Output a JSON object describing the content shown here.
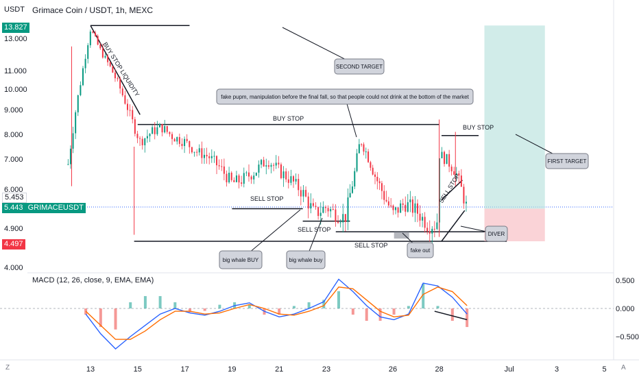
{
  "header": {
    "currency": "USDT",
    "title": "Grimace Coin / USDT, 1h, MEXC"
  },
  "macd_label": "MACD (12, 26, close, 9, EMA, EMA)",
  "price_tags": {
    "high": {
      "text": "13.827",
      "color": "#089981"
    },
    "close": {
      "text": "5.453",
      "color": "#ffffff"
    },
    "symbol": {
      "text": "5.443",
      "label": "GRIMACEUSDT",
      "color": "#089981"
    },
    "low": {
      "text": "4.497",
      "color": "#f23645"
    }
  },
  "corner_left": "Z",
  "corner_right": "A",
  "chart_data": [
    {
      "type": "candlestick",
      "title": "Grimace Coin / USDT, 1h, MEXC",
      "y_ticks": [
        13.0,
        11.0,
        10.0,
        9.0,
        8.0,
        7.0,
        6.0,
        4.9,
        4.0
      ],
      "y_tick_labels": [
        "13.000",
        "11.000",
        "10.000",
        "9.000",
        "8.000",
        "7.000",
        "6.000",
        "4.900",
        "4.000"
      ],
      "x_ticks": [
        "13",
        "15",
        "17",
        "19",
        "21",
        "23",
        "26",
        "28",
        "Jul",
        "3",
        "5"
      ],
      "ylim": [
        3.95,
        14.3
      ],
      "series_close": [
        {
          "x": 12.0,
          "y": 6.5
        },
        {
          "x": 12.6,
          "y": 10.5
        },
        {
          "x": 13.0,
          "y": 13.6
        },
        {
          "x": 13.4,
          "y": 12.3
        },
        {
          "x": 13.8,
          "y": 11.3
        },
        {
          "x": 14.2,
          "y": 10.2
        },
        {
          "x": 14.7,
          "y": 8.7
        },
        {
          "x": 15.1,
          "y": 7.7
        },
        {
          "x": 15.6,
          "y": 8.1
        },
        {
          "x": 16.0,
          "y": 8.3
        },
        {
          "x": 16.5,
          "y": 7.9
        },
        {
          "x": 17.0,
          "y": 7.7
        },
        {
          "x": 17.5,
          "y": 7.3
        },
        {
          "x": 18.0,
          "y": 7.1
        },
        {
          "x": 18.5,
          "y": 6.7
        },
        {
          "x": 19.0,
          "y": 6.2
        },
        {
          "x": 19.4,
          "y": 6.3
        },
        {
          "x": 20.0,
          "y": 6.6
        },
        {
          "x": 20.5,
          "y": 7.0
        },
        {
          "x": 21.0,
          "y": 6.6
        },
        {
          "x": 21.5,
          "y": 6.3
        },
        {
          "x": 22.0,
          "y": 5.9
        },
        {
          "x": 22.5,
          "y": 5.3
        },
        {
          "x": 23.0,
          "y": 5.5
        },
        {
          "x": 23.4,
          "y": 5.3
        },
        {
          "x": 23.8,
          "y": 5.2
        },
        {
          "x": 24.2,
          "y": 6.4
        },
        {
          "x": 24.5,
          "y": 7.8
        },
        {
          "x": 24.8,
          "y": 7.2
        },
        {
          "x": 25.2,
          "y": 6.4
        },
        {
          "x": 25.6,
          "y": 5.8
        },
        {
          "x": 26.0,
          "y": 5.3
        },
        {
          "x": 26.5,
          "y": 5.6
        },
        {
          "x": 27.0,
          "y": 5.4
        },
        {
          "x": 27.5,
          "y": 5.0
        },
        {
          "x": 27.9,
          "y": 5.0
        },
        {
          "x": 28.0,
          "y": 7.2
        },
        {
          "x": 28.3,
          "y": 7.0
        },
        {
          "x": 28.7,
          "y": 6.6
        },
        {
          "x": 29.0,
          "y": 5.9
        },
        {
          "x": 29.2,
          "y": 5.45
        }
      ],
      "horizontal_levels": [
        {
          "label": "BUY STOP",
          "y": 8.4
        },
        {
          "label": "SELL STOP",
          "y": 5.45
        },
        {
          "label": "SELL STOP",
          "y": 5.1
        },
        {
          "label": "SELL STOP",
          "y": 4.82
        },
        {
          "label": "BUY STOP",
          "y": 7.95
        },
        {
          "label": "",
          "y": 13.8
        }
      ],
      "annotations": [
        "BUY STOP LIQUIDITY",
        "SECOND TARGET",
        "fake pupm, manipulation before the final fall, so that people could not drink at the bottom of the market",
        "BUY STOP",
        "FIRST TARGET",
        "SELL STOP",
        "SELL STOP",
        "SELL STOP",
        "SELL STOP",
        "BUY STOP",
        "big whale BUY",
        "big whale buy",
        "fake out",
        "DIVER"
      ],
      "position": {
        "entry": 5.45,
        "target": 13.8,
        "stop": 4.6
      }
    },
    {
      "type": "line",
      "title": "MACD (12, 26, close, 9, EMA, EMA)",
      "y_ticks": [
        0.5,
        0.0,
        -0.5
      ],
      "y_tick_labels": [
        "0.500",
        "0.000",
        "−0.500"
      ],
      "ylim": [
        -0.75,
        0.6
      ],
      "series": [
        {
          "name": "MACD",
          "color": "#2962ff",
          "values": [
            -0.1,
            -0.45,
            -0.72,
            -0.5,
            -0.3,
            -0.1,
            0.0,
            -0.08,
            -0.12,
            -0.05,
            0.05,
            0.1,
            -0.05,
            -0.15,
            -0.1,
            0.0,
            0.12,
            0.52,
            0.3,
            0.05,
            -0.15,
            -0.2,
            -0.1,
            0.45,
            0.4,
            0.2,
            -0.1
          ]
        },
        {
          "name": "Signal",
          "color": "#ff6d00",
          "values": [
            -0.05,
            -0.3,
            -0.55,
            -0.55,
            -0.4,
            -0.2,
            -0.05,
            -0.05,
            -0.1,
            -0.08,
            0.0,
            0.07,
            0.0,
            -0.1,
            -0.12,
            -0.05,
            0.05,
            0.38,
            0.35,
            0.15,
            -0.05,
            -0.15,
            -0.12,
            0.25,
            0.38,
            0.3,
            0.05
          ]
        }
      ]
    }
  ]
}
